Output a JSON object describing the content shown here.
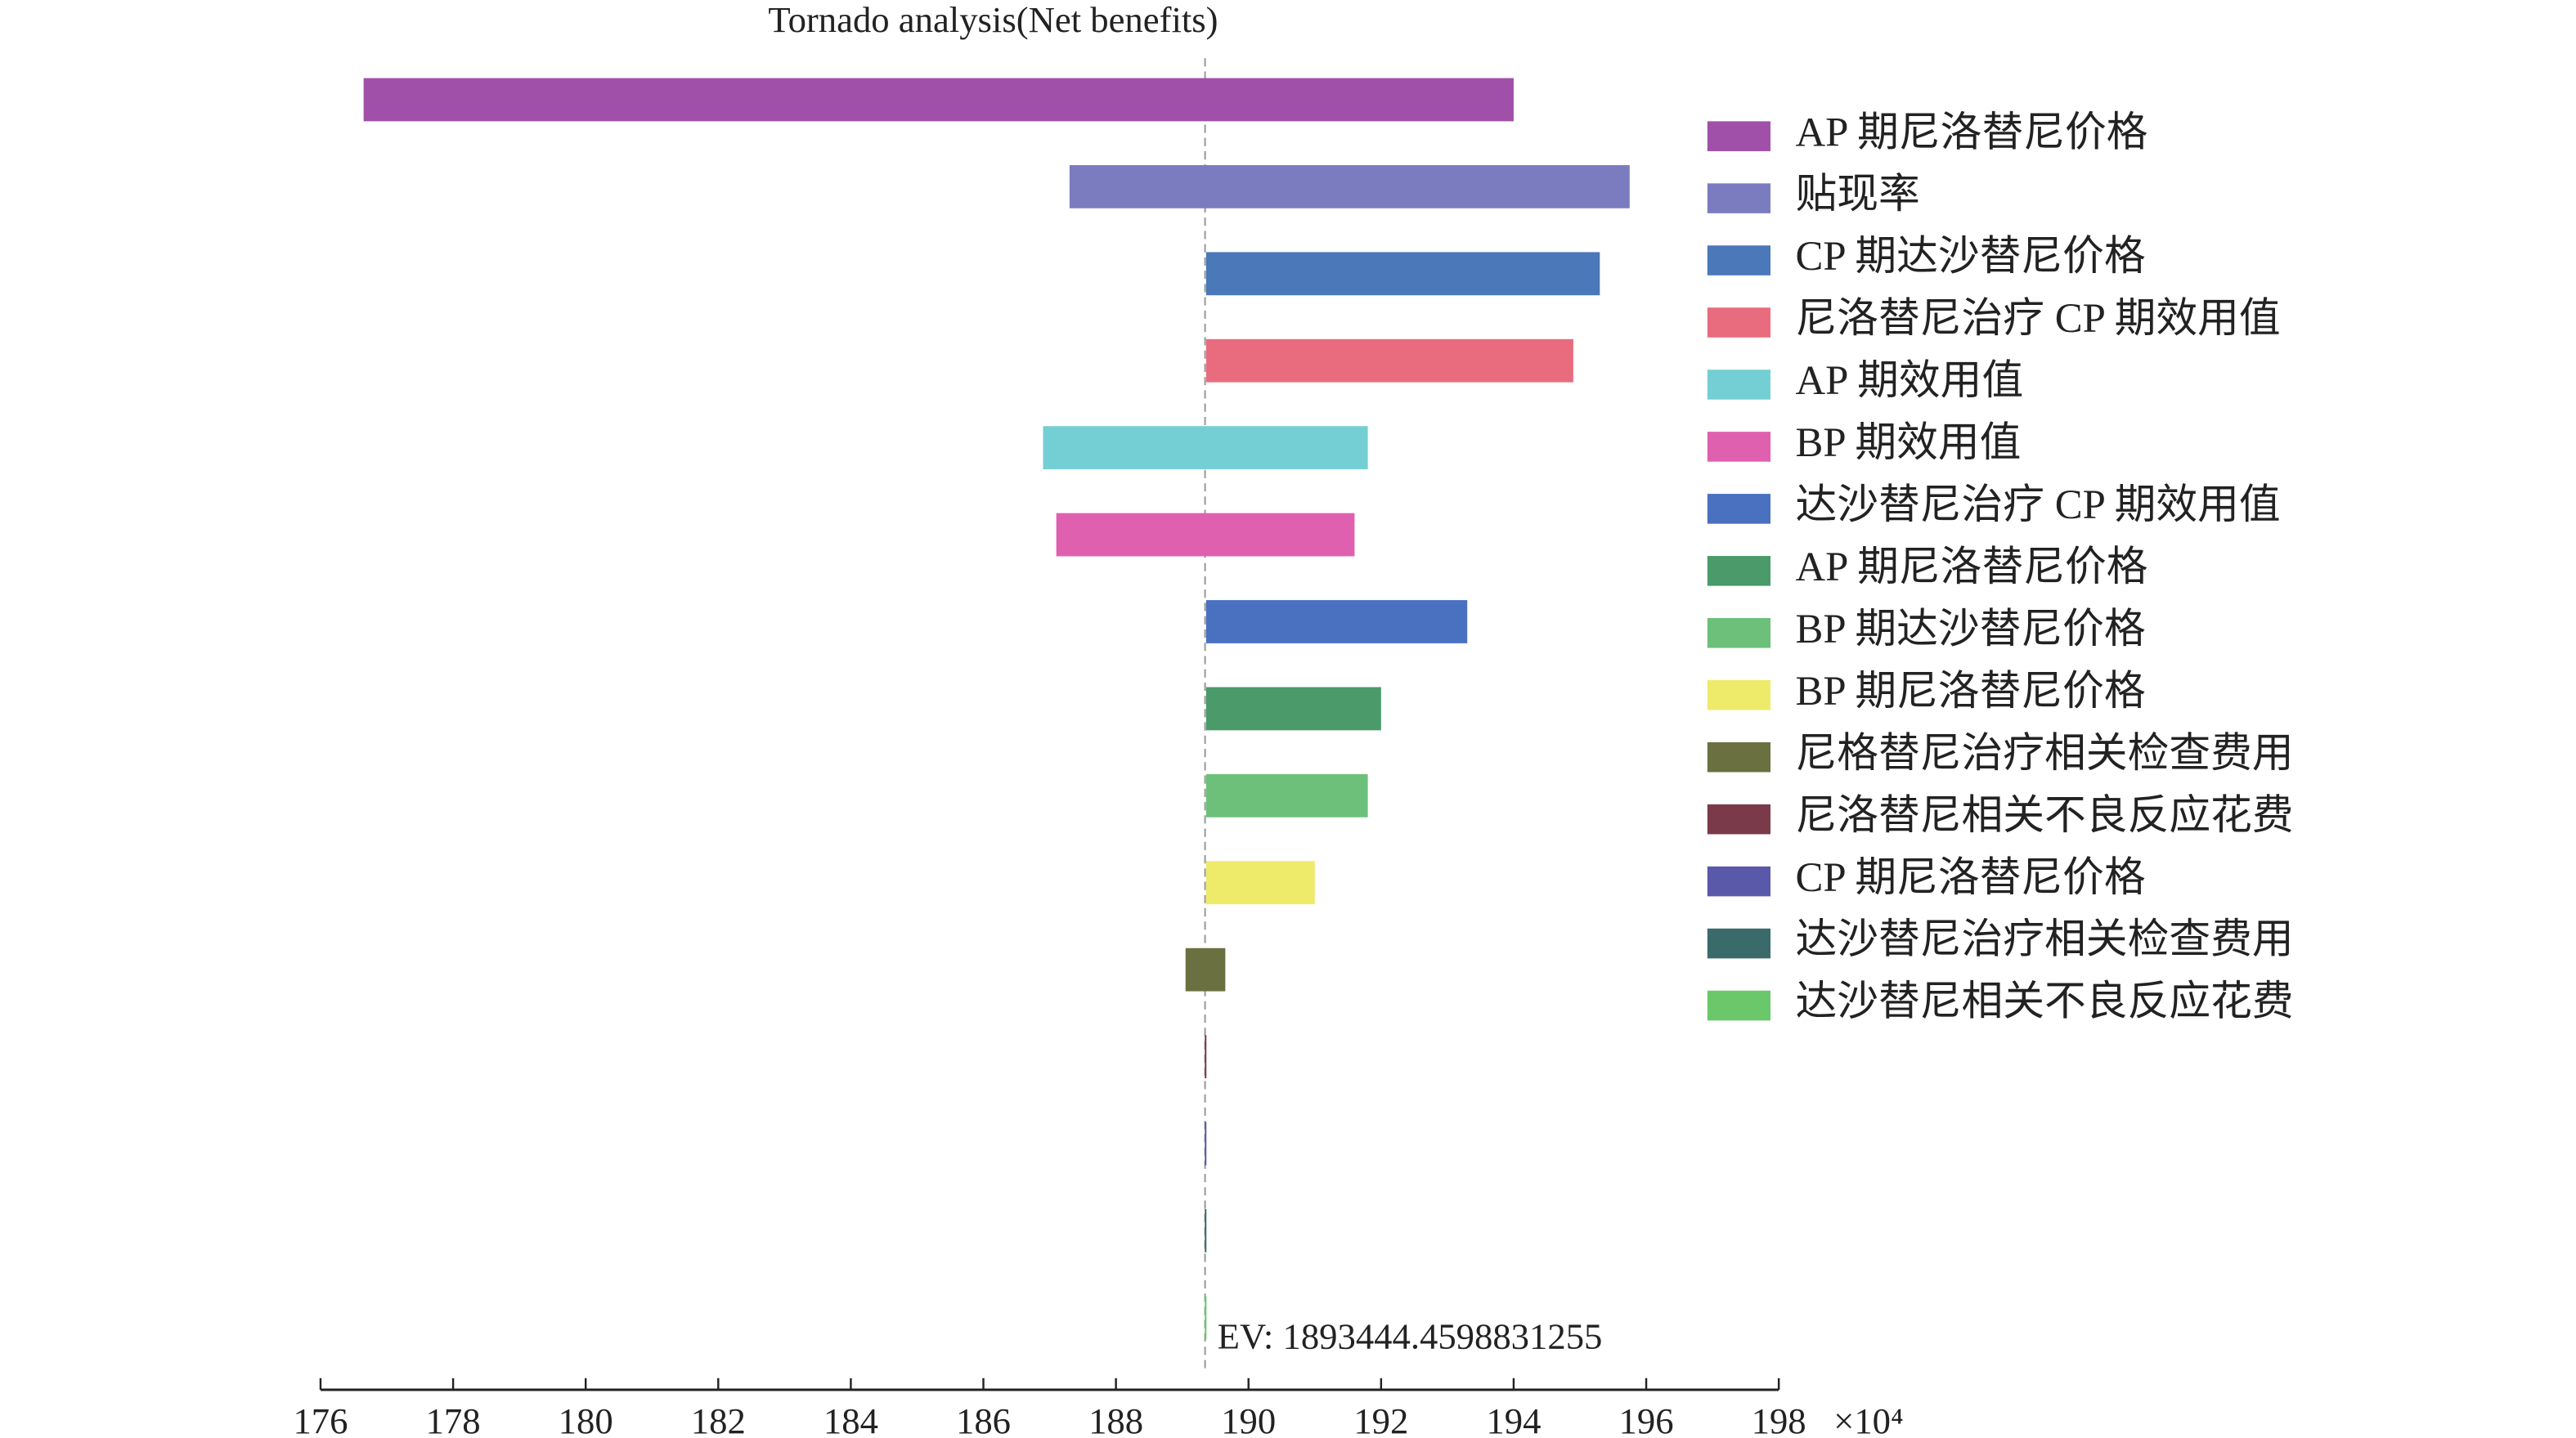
{
  "chart_data": {
    "type": "tornado",
    "title": "Tornado analysis(Net benefits)",
    "x_multiplier": "×10⁴",
    "ev": 189.34444598831254,
    "ev_label": "EV: 1893444.4598831255",
    "xlim": [
      176,
      198
    ],
    "xticks": [
      176,
      178,
      180,
      182,
      184,
      186,
      188,
      190,
      192,
      194,
      196,
      198
    ],
    "series": [
      {
        "name": "AP 期尼洛替尼价格",
        "color": "#a050a8",
        "values": [
          176.65,
          194.0
        ]
      },
      {
        "name": "贴现率",
        "color": "#7b7cc0",
        "values": [
          187.3,
          195.75
        ]
      },
      {
        "name": "CP 期达沙替尼价格",
        "color": "#4a78b8",
        "values": [
          189.36,
          195.3
        ]
      },
      {
        "name": "尼洛替尼治疗 CP 期效用值",
        "color": "#e86c7e",
        "values": [
          189.36,
          194.9
        ]
      },
      {
        "name": "AP 期效用值",
        "color": "#74cfd4",
        "values": [
          186.9,
          191.8
        ]
      },
      {
        "name": "BP 期效用值",
        "color": "#e060b0",
        "values": [
          187.1,
          191.6
        ]
      },
      {
        "name": "达沙替尼治疗 CP 期效用值",
        "color": "#4a70c0",
        "values": [
          189.36,
          193.3
        ]
      },
      {
        "name": "AP 期尼洛替尼价格",
        "color": "#4a9a6a",
        "values": [
          189.36,
          192.0
        ]
      },
      {
        "name": "BP 期达沙替尼价格",
        "color": "#6cc07a",
        "values": [
          189.36,
          191.8
        ]
      },
      {
        "name": "BP 期尼洛替尼价格",
        "color": "#eeea6a",
        "values": [
          189.36,
          191.0
        ]
      },
      {
        "name": "尼格替尼治疗相关检查费用",
        "color": "#6a7040",
        "values": [
          189.05,
          189.65
        ]
      },
      {
        "name": "尼洛替尼相关不良反应花费",
        "color": "#7a3a4a",
        "values": [
          189.34,
          189.36
        ]
      },
      {
        "name": "CP 期尼洛替尼价格",
        "color": "#5a58a8",
        "values": [
          189.34,
          189.36
        ]
      },
      {
        "name": "达沙替尼治疗相关检查费用",
        "color": "#3a6a6a",
        "values": [
          189.34,
          189.36
        ]
      },
      {
        "name": "达沙替尼相关不良反应花费",
        "color": "#6ac86a",
        "values": [
          189.34,
          189.36
        ]
      }
    ]
  }
}
